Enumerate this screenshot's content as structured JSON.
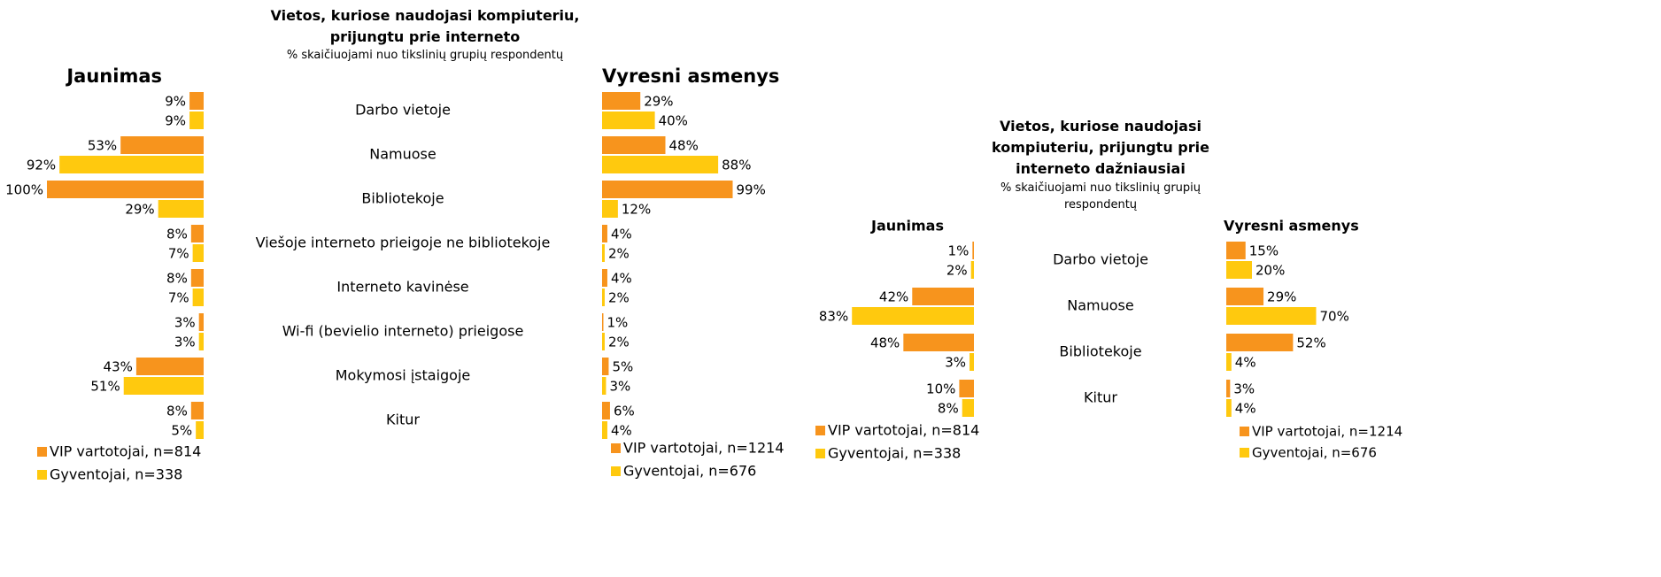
{
  "chart_data": [
    {
      "type": "bar",
      "title": "Vietos, kuriose naudojasi kompiuteriu, prijungtu prie interneto",
      "subtitle": "% skaičiuojami nuo tikslinių grupių respondentų",
      "categories": [
        "Darbo vietoje",
        "Namuose",
        "Bibliotekoje",
        "Viešoje interneto prieigoje ne bibliotekoje",
        "Interneto kavinėse",
        "Wi-fi (bevielio interneto) prieigose",
        "Mokymosi įstaigoje",
        "Kitur"
      ],
      "panels": [
        {
          "title": "Jaunimas",
          "series": [
            {
              "name": "VIP vartotojai, n=814",
              "color": "#f7941d",
              "values": [
                9,
                53,
                100,
                8,
                8,
                3,
                43,
                8
              ],
              "value_labels": [
                "9%",
                "53%",
                "100%",
                "8%",
                "8%",
                "3%",
                "43%",
                "8%"
              ]
            },
            {
              "name": "Gyventojai, n=338",
              "color": "#ffc90e",
              "values": [
                9,
                92,
                29,
                7,
                7,
                3,
                51,
                5
              ],
              "value_labels": [
                "9%",
                "92%",
                "29%",
                "7%",
                "7%",
                "3%",
                "51%",
                "5%"
              ]
            }
          ]
        },
        {
          "title": "Vyresni asmenys",
          "series": [
            {
              "name": "VIP vartotojai, n=1214",
              "color": "#f7941d",
              "values": [
                29,
                48,
                99,
                4,
                4,
                1,
                5,
                6
              ],
              "value_labels": [
                "29%",
                "48%",
                "99%",
                "4%",
                "4%",
                "1%",
                "5%",
                "6%"
              ]
            },
            {
              "name": "Gyventojai, n=676",
              "color": "#ffc90e",
              "values": [
                40,
                88,
                12,
                2,
                2,
                2,
                3,
                4
              ],
              "value_labels": [
                "40%",
                "88%",
                "12%",
                "2%",
                "2%",
                "2%",
                "3%",
                "4%"
              ]
            }
          ]
        }
      ]
    },
    {
      "type": "bar",
      "title": "Vietos, kuriose naudojasi kompiuteriu, prijungtu prie interneto dažniausiai",
      "subtitle": "% skaičiuojami nuo tikslinių grupių respondentų",
      "categories": [
        "Darbo vietoje",
        "Namuose",
        "Bibliotekoje",
        "Kitur"
      ],
      "panels": [
        {
          "title": "Jaunimas",
          "series": [
            {
              "name": "VIP vartotojai, n=814",
              "color": "#f7941d",
              "values": [
                1,
                42,
                48,
                10
              ],
              "value_labels": [
                "1%",
                "42%",
                "48%",
                "10%"
              ]
            },
            {
              "name": "Gyventojai, n=338",
              "color": "#ffc90e",
              "values": [
                2,
                83,
                3,
                8
              ],
              "value_labels": [
                "2%",
                "83%",
                "3%",
                "8%"
              ]
            }
          ]
        },
        {
          "title": "Vyresni asmenys",
          "series": [
            {
              "name": "VIP vartotojai, n=1214",
              "color": "#f7941d",
              "values": [
                15,
                29,
                52,
                3
              ],
              "value_labels": [
                "15%",
                "29%",
                "52%",
                "3%"
              ]
            },
            {
              "name": "Gyventojai, n=676",
              "color": "#ffc90e",
              "values": [
                20,
                70,
                4,
                4
              ],
              "value_labels": [
                "20%",
                "70%",
                "4%",
                "4%"
              ]
            }
          ]
        }
      ]
    }
  ]
}
